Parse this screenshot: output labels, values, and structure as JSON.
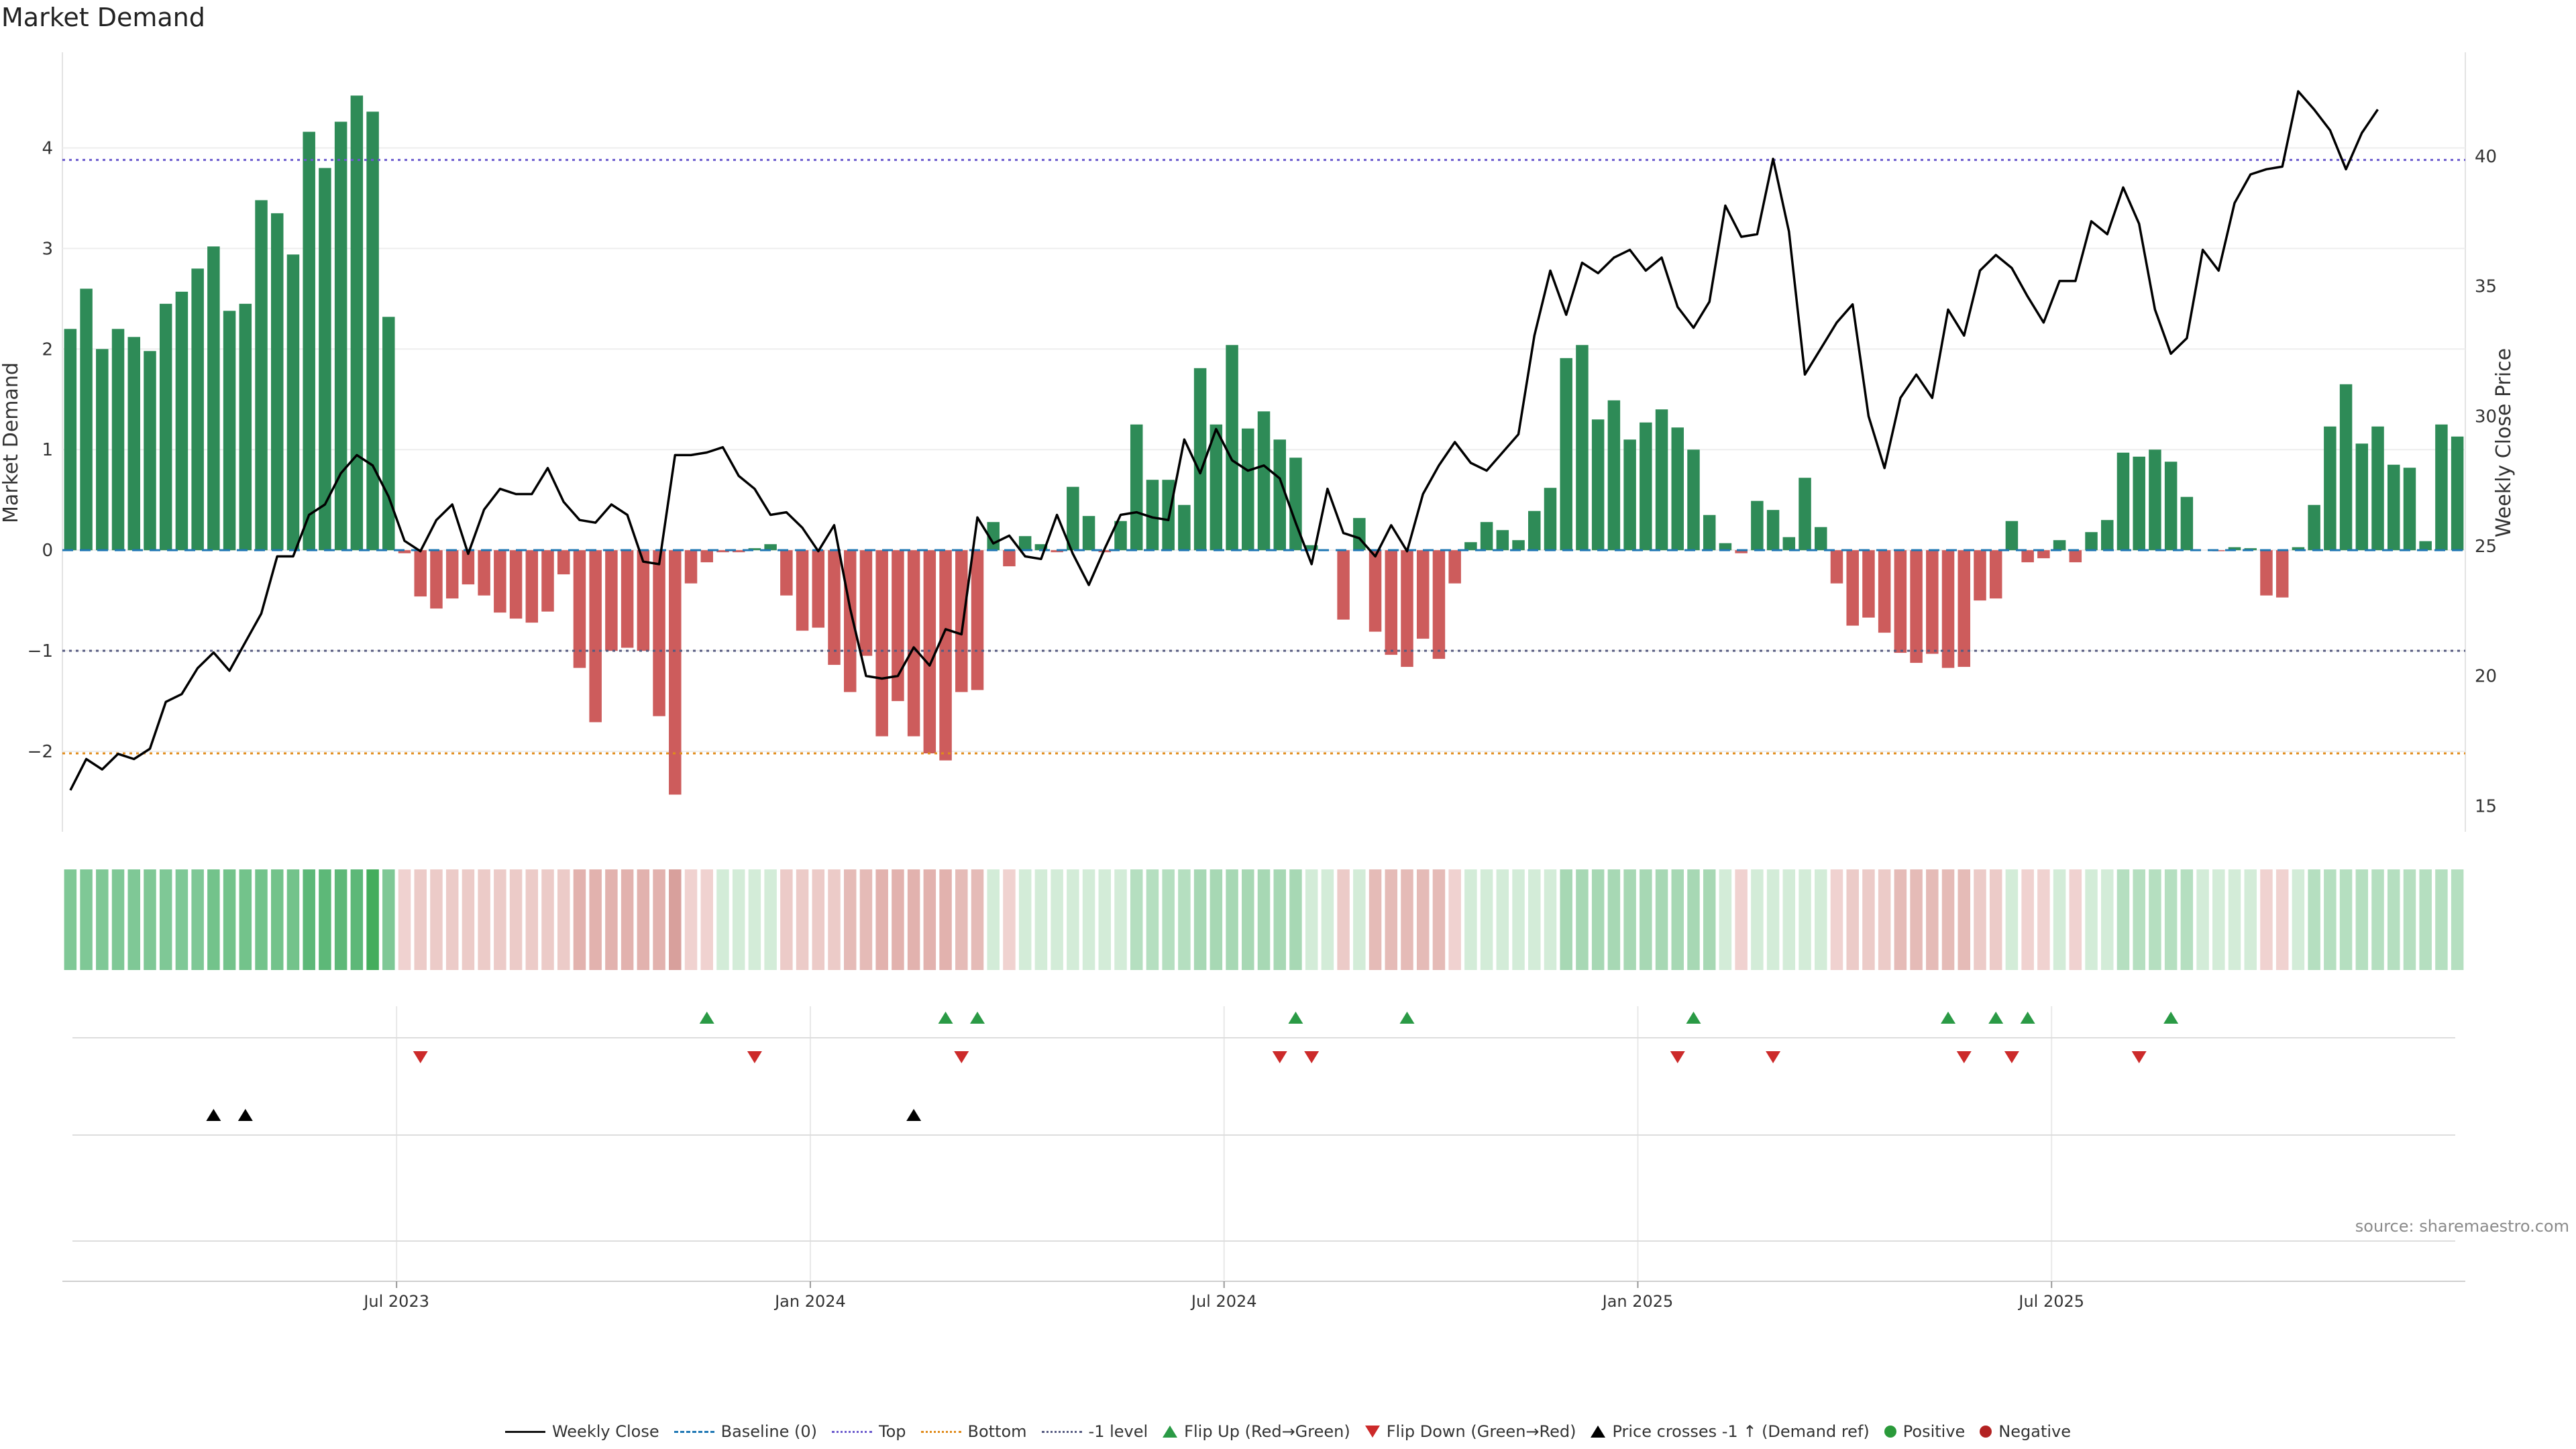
{
  "chart_data": {
    "type": "bar",
    "title": "Market Demand",
    "ylabel_left": "Market Demand",
    "ylabel_right": "Weekly Close Price",
    "source": "source: sharemaestro.com",
    "ylim_left": [
      -2.8,
      4.95
    ],
    "ylim_right": [
      14.0,
      44.0
    ],
    "yticks_left": [
      {
        "v": 4,
        "label": "4"
      },
      {
        "v": 3,
        "label": "3"
      },
      {
        "v": 2,
        "label": "2"
      },
      {
        "v": 1,
        "label": "1"
      },
      {
        "v": 0,
        "label": "0"
      },
      {
        "v": -1,
        "label": "−1"
      },
      {
        "v": -2,
        "label": "−2"
      }
    ],
    "yticks_right": [
      {
        "v": 40,
        "label": "40"
      },
      {
        "v": 35,
        "label": "35"
      },
      {
        "v": 30,
        "label": "30"
      },
      {
        "v": 25,
        "label": "25"
      },
      {
        "v": 20,
        "label": "20"
      },
      {
        "v": 15,
        "label": "15"
      }
    ],
    "x_ticks": [
      {
        "week": 21,
        "label": "Jul 2023"
      },
      {
        "week": 47,
        "label": "Jan 2024"
      },
      {
        "week": 73,
        "label": "Jul 2024"
      },
      {
        "week": 99,
        "label": "Jan 2025"
      },
      {
        "week": 125,
        "label": "Jul 2025"
      }
    ],
    "reference_lines": {
      "top": 3.88,
      "bottom": -2.02,
      "minus_one": -1.0
    },
    "demand": [
      2.2,
      2.6,
      2.0,
      2.2,
      2.12,
      1.98,
      2.45,
      2.57,
      2.8,
      3.02,
      2.38,
      2.45,
      3.48,
      3.35,
      2.94,
      4.16,
      3.8,
      4.26,
      4.52,
      4.36,
      2.32,
      -0.03,
      -0.46,
      -0.58,
      -0.48,
      -0.34,
      -0.45,
      -0.62,
      -0.68,
      -0.72,
      -0.61,
      -0.24,
      -1.17,
      -1.71,
      -1.0,
      -0.97,
      -1.0,
      -1.65,
      -2.43,
      -0.33,
      -0.12,
      -0.02,
      -0.02,
      0.02,
      0.06,
      -0.45,
      -0.8,
      -0.77,
      -1.14,
      -1.41,
      -1.05,
      -1.85,
      -1.5,
      -1.85,
      -2.02,
      -2.09,
      -1.41,
      -1.39,
      0.28,
      -0.16,
      0.14,
      0.06,
      -0.02,
      0.63,
      0.34,
      -0.02,
      0.29,
      1.25,
      0.7,
      0.7,
      0.45,
      1.81,
      1.25,
      2.04,
      1.21,
      1.38,
      1.1,
      0.92,
      0.05,
      0.0,
      -0.69,
      0.32,
      -0.81,
      -1.04,
      -1.16,
      -0.88,
      -1.08,
      -0.33,
      0.08,
      0.28,
      0.2,
      0.1,
      0.39,
      0.62,
      1.91,
      2.04,
      1.3,
      1.49,
      1.1,
      1.27,
      1.4,
      1.22,
      1.0,
      0.35,
      0.07,
      -0.03,
      0.49,
      0.4,
      0.13,
      0.72,
      0.23,
      -0.33,
      -0.75,
      -0.67,
      -0.82,
      -1.02,
      -1.12,
      -1.03,
      -1.17,
      -1.16,
      -0.5,
      -0.48,
      0.29,
      -0.12,
      -0.08,
      0.1,
      -0.12,
      0.18,
      0.3,
      0.97,
      0.93,
      1.0,
      0.88,
      0.53,
      0.0,
      -0.01,
      0.03,
      0.02,
      -0.45,
      -0.47,
      0.03,
      0.45,
      1.23,
      1.65,
      1.06,
      1.23,
      0.85,
      0.82,
      0.09,
      1.25,
      1.13
    ],
    "weekly_close": [
      15.6,
      16.8,
      16.4,
      17.0,
      16.8,
      17.2,
      19.0,
      19.3,
      20.3,
      20.9,
      20.2,
      21.3,
      22.4,
      24.6,
      24.6,
      26.2,
      26.6,
      27.8,
      28.5,
      28.1,
      26.9,
      25.2,
      24.8,
      26.0,
      26.6,
      24.7,
      26.4,
      27.2,
      27.0,
      27.0,
      28.0,
      26.7,
      26.0,
      25.9,
      26.6,
      26.2,
      24.4,
      24.3,
      28.5,
      28.5,
      28.6,
      28.8,
      27.7,
      27.2,
      26.2,
      26.3,
      25.7,
      24.8,
      25.8,
      22.6,
      20.0,
      19.9,
      20.0,
      21.1,
      20.4,
      21.8,
      21.6,
      26.1,
      25.1,
      25.4,
      24.6,
      24.5,
      26.2,
      24.7,
      23.5,
      24.9,
      26.2,
      26.3,
      26.1,
      26.0,
      29.1,
      27.8,
      29.5,
      28.3,
      27.9,
      28.1,
      27.6,
      25.9,
      24.3,
      27.2,
      25.5,
      25.3,
      24.6,
      25.8,
      24.8,
      27.0,
      28.1,
      29.0,
      28.2,
      27.9,
      28.6,
      29.3,
      33.1,
      35.6,
      33.9,
      35.9,
      35.5,
      36.1,
      36.4,
      35.6,
      36.1,
      34.2,
      33.4,
      34.4,
      38.1,
      36.9,
      37.0,
      39.9,
      37.1,
      31.6,
      32.6,
      33.6,
      34.3,
      30.0,
      28.0,
      30.7,
      31.6,
      30.7,
      34.1,
      33.1,
      35.6,
      36.2,
      35.7,
      34.6,
      33.6,
      35.2,
      35.2,
      37.5,
      37.0,
      38.8,
      37.4,
      34.1,
      32.4,
      33.0,
      36.4,
      35.6,
      38.2,
      39.3,
      39.5,
      39.6,
      42.5,
      41.8,
      41.0,
      39.5,
      40.9,
      41.8
    ],
    "heat_colors": [
      "#7fc896",
      "#7fc896",
      "#7fc896",
      "#7fc896",
      "#7fc896",
      "#7fc896",
      "#7fc896",
      "#7fc896",
      "#7fc896",
      "#73c38b",
      "#73c38b",
      "#73c38b",
      "#73c38b",
      "#73c38b",
      "#73c38b",
      "#5db878",
      "#5db878",
      "#5db878",
      "#5db878",
      "#44ad5c",
      "#7fc896",
      "#f0d2d0",
      "#eccbc8",
      "#eccbc8",
      "#eccbc8",
      "#eccbc8",
      "#eccbc8",
      "#eccbc8",
      "#eccbc8",
      "#eccbc8",
      "#eccbc8",
      "#eccbc8",
      "#e2b2ae",
      "#e2b2ae",
      "#e2b2ae",
      "#e2b2ae",
      "#e2b2ae",
      "#e2b2ae",
      "#d8a09c",
      "#f0d2d0",
      "#f0d2d0",
      "#d3ecd8",
      "#d3ecd8",
      "#d3ecd8",
      "#d3ecd8",
      "#eccbc8",
      "#eccbc8",
      "#eccbc8",
      "#eccbc8",
      "#e5bbb7",
      "#e5bbb7",
      "#e2b2ae",
      "#e2b2ae",
      "#e2b2ae",
      "#e2b2ae",
      "#e2b2ae",
      "#e5bbb7",
      "#e5bbb7",
      "#d3ecd8",
      "#f0d2d0",
      "#d3ecd8",
      "#d3ecd8",
      "#d3ecd8",
      "#d3ecd8",
      "#d3ecd8",
      "#d3ecd8",
      "#d3ecd8",
      "#b5dfc0",
      "#b5dfc0",
      "#b5dfc0",
      "#b5dfc0",
      "#a7d8b4",
      "#a7d8b4",
      "#a7d8b4",
      "#a7d8b4",
      "#a7d8b4",
      "#a7d8b4",
      "#a7d8b4",
      "#d3ecd8",
      "#d3ecd8",
      "#eccbc8",
      "#d3ecd8",
      "#e5bbb7",
      "#e5bbb7",
      "#e5bbb7",
      "#e5bbb7",
      "#e5bbb7",
      "#f0d2d0",
      "#d3ecd8",
      "#d3ecd8",
      "#d3ecd8",
      "#d3ecd8",
      "#d3ecd8",
      "#d3ecd8",
      "#a7d8b4",
      "#a7d8b4",
      "#a7d8b4",
      "#a7d8b4",
      "#a7d8b4",
      "#a7d8b4",
      "#a7d8b4",
      "#a7d8b4",
      "#a7d8b4",
      "#a7d8b4",
      "#d3ecd8",
      "#f0d2d0",
      "#d3ecd8",
      "#d3ecd8",
      "#d3ecd8",
      "#d3ecd8",
      "#d3ecd8",
      "#f0d2d0",
      "#eccbc8",
      "#eccbc8",
      "#eccbc8",
      "#e5bbb7",
      "#e5bbb7",
      "#e5bbb7",
      "#e5bbb7",
      "#e5bbb7",
      "#eccbc8",
      "#eccbc8",
      "#d3ecd8",
      "#f0d2d0",
      "#f0d2d0",
      "#d3ecd8",
      "#f0d2d0",
      "#d3ecd8",
      "#d3ecd8",
      "#b5dfc0",
      "#b5dfc0",
      "#b5dfc0",
      "#b5dfc0",
      "#b5dfc0",
      "#d3ecd8",
      "#d3ecd8",
      "#d3ecd8",
      "#d3ecd8",
      "#f0d2d0",
      "#f0d2d0",
      "#d3ecd8",
      "#b5dfc0",
      "#b5dfc0",
      "#b5dfc0",
      "#b5dfc0",
      "#b5dfc0",
      "#b5dfc0",
      "#b5dfc0",
      "#b5dfc0",
      "#b5dfc0",
      "#b5dfc0"
    ],
    "flip_up_weeks": [
      40,
      55,
      57,
      77,
      84,
      102,
      118,
      121,
      123,
      132
    ],
    "flip_down_weeks": [
      22,
      43,
      56,
      76,
      78,
      101,
      107,
      119,
      122,
      130
    ],
    "price_cross_weeks": [
      9,
      11,
      53
    ],
    "colors": {
      "positive": "#2e8b57",
      "negative": "#cd5c5c",
      "price": "#000000",
      "baseline": "#1f77b4",
      "top": "#6a5acd",
      "bottom": "#e08b1a",
      "minus_one": "#555a80",
      "flip_up": "#2a9a45",
      "flip_down": "#cc2a2a",
      "cross": "#000000"
    }
  },
  "legend": {
    "weekly_close": "Weekly Close",
    "baseline": "Baseline (0)",
    "top": "Top",
    "bottom": "Bottom",
    "minus_one": "-1 level",
    "flip_up": "Flip Up (Red→Green)",
    "flip_down": "Flip Down (Green→Red)",
    "price_cross": "Price crosses -1 ↑ (Demand ref)",
    "positive": "Positive",
    "negative": "Negative"
  }
}
